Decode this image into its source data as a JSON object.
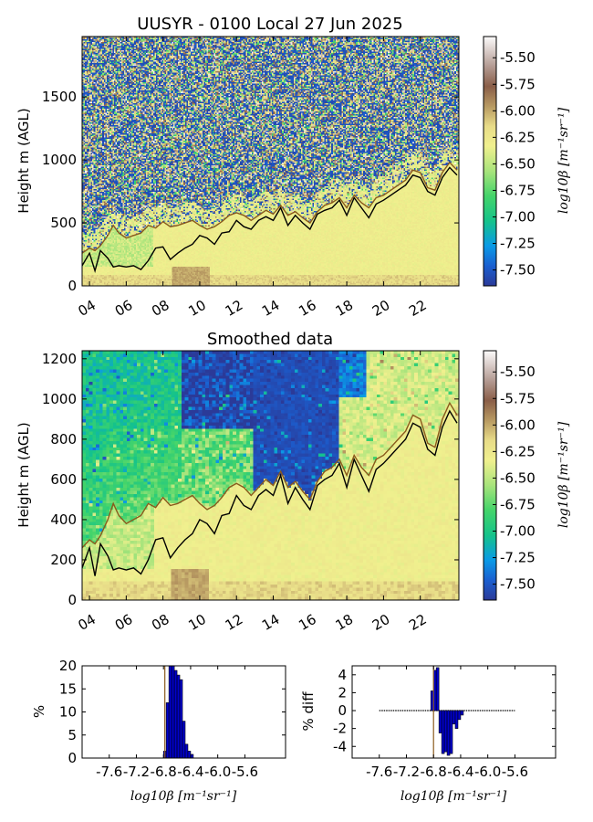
{
  "chart_data": [
    {
      "id": "raw",
      "type": "heatmap",
      "title": "UUSYR - 0100 Local 27 Jun 2025",
      "ylabel": "Height m (AGL)",
      "x_tick_labels": [
        "04",
        "06",
        "08",
        "10",
        "12",
        "14",
        "16",
        "18",
        "20",
        "22"
      ],
      "x_tick_hours": [
        4,
        6,
        8,
        10,
        12,
        14,
        16,
        18,
        20,
        22
      ],
      "xlim_hours": [
        3.6,
        24.1
      ],
      "ylim": [
        0,
        1980
      ],
      "y_ticks": [
        0,
        500,
        1000,
        1500
      ],
      "colorbar": {
        "label": "log10β [m⁻¹sr⁻¹]",
        "range": [
          -7.65,
          -5.3
        ],
        "ticks": [
          "-5.50",
          "-5.75",
          "-6.00",
          "-6.25",
          "-6.50",
          "-6.75",
          "-7.00",
          "-7.25",
          "-7.50"
        ],
        "tick_values": [
          -5.5,
          -5.75,
          -6.0,
          -6.25,
          -6.5,
          -6.75,
          -7.0,
          -7.25,
          -7.5
        ]
      },
      "series": [
        {
          "color": "#000000",
          "x": [
            3.6,
            4.0,
            4.3,
            4.6,
            5.0,
            5.3,
            5.6,
            6.0,
            6.4,
            6.8,
            7.2,
            7.6,
            8.0,
            8.4,
            8.8,
            9.2,
            9.6,
            10.0,
            10.4,
            10.8,
            11.2,
            11.6,
            12.0,
            12.4,
            12.8,
            13.2,
            13.6,
            14.0,
            14.4,
            14.8,
            15.2,
            15.6,
            16.0,
            16.4,
            16.8,
            17.2,
            17.6,
            18.0,
            18.4,
            18.8,
            19.2,
            19.6,
            20.0,
            20.4,
            20.8,
            21.2,
            21.6,
            22.0,
            22.4,
            22.8,
            23.2,
            23.6,
            24.0
          ],
          "y": [
            160,
            260,
            120,
            280,
            220,
            150,
            160,
            150,
            160,
            130,
            200,
            300,
            310,
            210,
            260,
            300,
            330,
            400,
            380,
            330,
            420,
            430,
            520,
            470,
            450,
            520,
            550,
            520,
            620,
            480,
            560,
            500,
            450,
            570,
            600,
            620,
            680,
            560,
            700,
            620,
            540,
            650,
            680,
            720,
            760,
            800,
            880,
            860,
            750,
            720,
            860,
            940,
            880
          ]
        },
        {
          "color": "#8a5a1c",
          "x": [
            3.6,
            4.0,
            4.3,
            4.6,
            5.0,
            5.3,
            5.6,
            6.0,
            6.4,
            6.8,
            7.2,
            7.6,
            8.0,
            8.4,
            8.8,
            9.2,
            9.6,
            10.0,
            10.4,
            10.8,
            11.2,
            11.6,
            12.0,
            12.4,
            12.8,
            13.2,
            13.6,
            14.0,
            14.4,
            14.8,
            15.2,
            15.6,
            16.0,
            16.4,
            16.8,
            17.2,
            17.6,
            18.0,
            18.4,
            18.8,
            19.2,
            19.6,
            20.0,
            20.4,
            20.8,
            21.2,
            21.6,
            22.0,
            22.4,
            22.8,
            23.2,
            23.6,
            24.0
          ],
          "y": [
            260,
            300,
            280,
            320,
            400,
            480,
            420,
            380,
            400,
            420,
            480,
            460,
            510,
            470,
            480,
            500,
            520,
            480,
            450,
            470,
            510,
            560,
            580,
            560,
            520,
            560,
            600,
            570,
            640,
            560,
            590,
            540,
            500,
            590,
            640,
            660,
            700,
            620,
            720,
            660,
            620,
            700,
            720,
            760,
            800,
            840,
            920,
            900,
            780,
            760,
            900,
            980,
            920
          ]
        }
      ]
    },
    {
      "id": "smoothed",
      "type": "heatmap",
      "title": "Smoothed data",
      "ylabel": "Height m (AGL)",
      "x_tick_labels": [
        "04",
        "06",
        "08",
        "10",
        "12",
        "14",
        "16",
        "18",
        "20",
        "22"
      ],
      "x_tick_hours": [
        4,
        6,
        8,
        10,
        12,
        14,
        16,
        18,
        20,
        22
      ],
      "xlim_hours": [
        3.6,
        24.1
      ],
      "ylim": [
        0,
        1240
      ],
      "y_ticks": [
        0,
        200,
        400,
        600,
        800,
        1000,
        1200
      ],
      "colorbar": {
        "label": "log10β [m⁻¹sr⁻¹]",
        "range": [
          -7.65,
          -5.3
        ],
        "ticks": [
          "-5.50",
          "-5.75",
          "-6.00",
          "-6.25",
          "-6.50",
          "-6.75",
          "-7.00",
          "-7.25",
          "-7.50"
        ],
        "tick_values": [
          -5.5,
          -5.75,
          -6.0,
          -6.25,
          -6.5,
          -6.75,
          -7.0,
          -7.25,
          -7.5
        ]
      },
      "series": [
        {
          "color": "#000000",
          "x": [
            3.6,
            4.0,
            4.3,
            4.6,
            5.0,
            5.3,
            5.6,
            6.0,
            6.4,
            6.8,
            7.2,
            7.6,
            8.0,
            8.4,
            8.8,
            9.2,
            9.6,
            10.0,
            10.4,
            10.8,
            11.2,
            11.6,
            12.0,
            12.4,
            12.8,
            13.2,
            13.6,
            14.0,
            14.4,
            14.8,
            15.2,
            15.6,
            16.0,
            16.4,
            16.8,
            17.2,
            17.6,
            18.0,
            18.4,
            18.8,
            19.2,
            19.6,
            20.0,
            20.4,
            20.8,
            21.2,
            21.6,
            22.0,
            22.4,
            22.8,
            23.2,
            23.6,
            24.0
          ],
          "y": [
            160,
            260,
            120,
            280,
            220,
            150,
            160,
            150,
            160,
            130,
            200,
            300,
            310,
            210,
            260,
            300,
            330,
            400,
            380,
            330,
            420,
            430,
            520,
            470,
            450,
            520,
            550,
            520,
            620,
            480,
            560,
            500,
            450,
            570,
            600,
            620,
            680,
            560,
            700,
            620,
            540,
            650,
            680,
            720,
            760,
            800,
            880,
            860,
            750,
            720,
            860,
            940,
            880
          ]
        },
        {
          "color": "#8a5a1c",
          "x": [
            3.6,
            4.0,
            4.3,
            4.6,
            5.0,
            5.3,
            5.6,
            6.0,
            6.4,
            6.8,
            7.2,
            7.6,
            8.0,
            8.4,
            8.8,
            9.2,
            9.6,
            10.0,
            10.4,
            10.8,
            11.2,
            11.6,
            12.0,
            12.4,
            12.8,
            13.2,
            13.6,
            14.0,
            14.4,
            14.8,
            15.2,
            15.6,
            16.0,
            16.4,
            16.8,
            17.2,
            17.6,
            18.0,
            18.4,
            18.8,
            19.2,
            19.6,
            20.0,
            20.4,
            20.8,
            21.2,
            21.6,
            22.0,
            22.4,
            22.8,
            23.2,
            23.6,
            24.0
          ],
          "y": [
            260,
            300,
            280,
            320,
            400,
            480,
            420,
            380,
            400,
            420,
            480,
            460,
            510,
            470,
            480,
            500,
            520,
            480,
            450,
            470,
            510,
            560,
            580,
            560,
            520,
            560,
            600,
            570,
            640,
            560,
            590,
            540,
            500,
            590,
            640,
            660,
            700,
            620,
            720,
            660,
            620,
            700,
            720,
            760,
            800,
            840,
            920,
            900,
            780,
            760,
            900,
            980,
            920
          ]
        }
      ]
    },
    {
      "id": "histogram",
      "type": "bar",
      "ylabel": "%",
      "xlabel": "log10β [m⁻¹sr⁻¹]",
      "xlim": [
        -8.0,
        -5.0
      ],
      "ylim": [
        0,
        20
      ],
      "x_ticks": [
        "-7.6",
        "-7.2",
        "-6.8",
        "-6.4",
        "-6.0",
        "-5.6"
      ],
      "x_tick_values": [
        -7.6,
        -7.2,
        -6.8,
        -6.4,
        -6.0,
        -5.6
      ],
      "y_ticks": [
        "0",
        "5",
        "10",
        "15",
        "20"
      ],
      "y_tick_values": [
        0,
        5,
        10,
        15,
        20
      ],
      "bar_width": 0.04,
      "bar_color": "#0000cc",
      "bins": [
        -6.8,
        -6.76,
        -6.72,
        -6.68,
        -6.64,
        -6.6,
        -6.56,
        -6.52,
        -6.48,
        -6.44,
        -6.4
      ],
      "values": [
        1.5,
        12,
        21,
        20,
        19,
        18,
        17,
        8,
        3,
        1.5,
        0.8
      ],
      "marker_line": {
        "x": -6.78,
        "color": "#8a5a1c"
      }
    },
    {
      "id": "diff",
      "type": "bar",
      "ylabel": "% diff",
      "xlabel": "log10β [m⁻¹sr⁻¹]",
      "xlim": [
        -8.0,
        -5.0
      ],
      "ylim": [
        -5.3,
        5
      ],
      "x_ticks": [
        "-7.6",
        "-7.2",
        "-6.8",
        "-6.4",
        "-6.0",
        "-5.6"
      ],
      "x_tick_values": [
        -7.6,
        -7.2,
        -6.8,
        -6.4,
        -6.0,
        -5.6
      ],
      "y_ticks": [
        "4",
        "2",
        "0",
        "-2",
        "-4"
      ],
      "y_tick_values": [
        4,
        2,
        0,
        -2,
        -4
      ],
      "bar_width": 0.04,
      "bar_color": "#0000cc",
      "baseline_range": [
        -7.6,
        -5.6
      ],
      "bins": [
        -6.84,
        -6.8,
        -6.76,
        -6.72,
        -6.68,
        -6.64,
        -6.6,
        -6.56,
        -6.52,
        -6.48,
        -6.44,
        -6.4
      ],
      "values": [
        2.2,
        4.5,
        4.8,
        -2.5,
        -4.8,
        -4.6,
        -5.0,
        -4.8,
        -1.5,
        -2.0,
        -1.0,
        -0.5
      ],
      "marker_line": {
        "x": -6.8,
        "color": "#8a5a1c"
      }
    }
  ]
}
